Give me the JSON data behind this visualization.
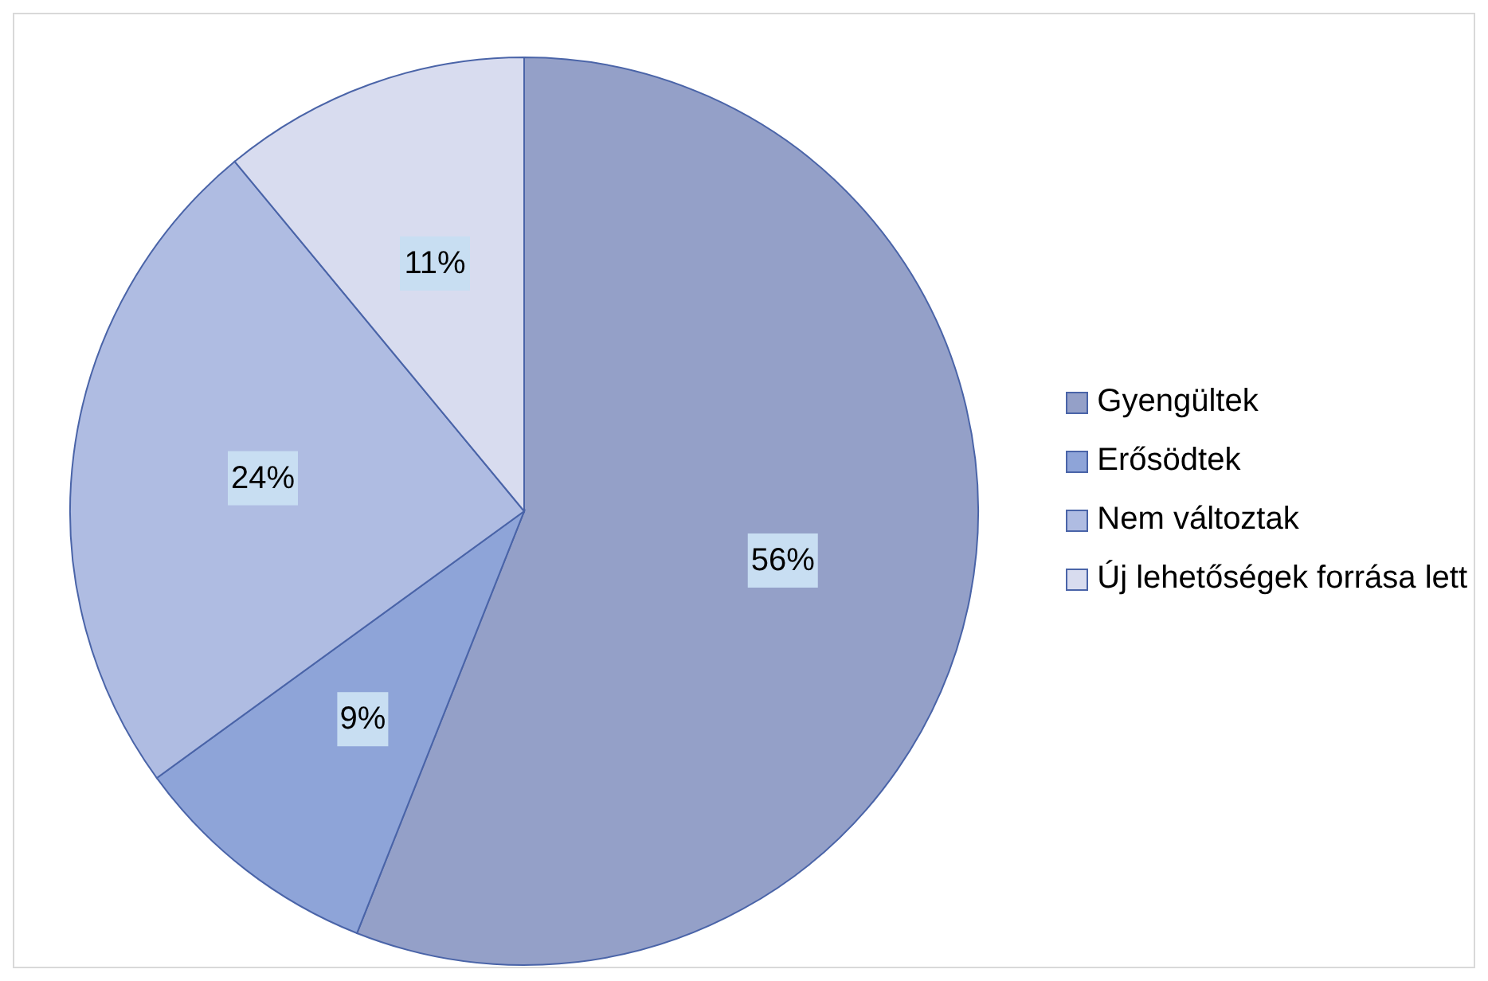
{
  "chart_data": {
    "type": "pie",
    "categories": [
      "Gyengültek",
      "Erősödtek",
      "Nem változtak",
      "Új lehetőségek forrása lett"
    ],
    "values": [
      56,
      9,
      24,
      11
    ],
    "colors": [
      "#94a0c8",
      "#8ea4d8",
      "#afbce2",
      "#d8dcef"
    ],
    "value_labels": [
      "56%",
      "9%",
      "24%",
      "11%"
    ],
    "legend": "right"
  }
}
